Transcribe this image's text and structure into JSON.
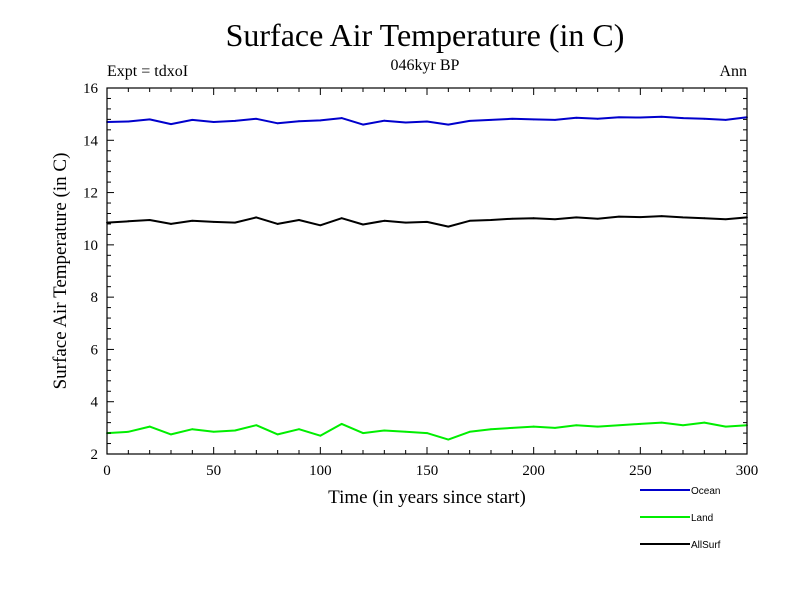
{
  "chart_data": {
    "type": "line",
    "title": "Surface Air Temperature (in C)",
    "subtitle": "046kyr BP",
    "annotations": {
      "left": "Expt = tdxoI",
      "right": "Ann"
    },
    "xlabel": "Time (in years since start)",
    "ylabel": "Surface Air Temperature (in C)",
    "xlim": [
      0,
      300
    ],
    "ylim": [
      2,
      16
    ],
    "xticks": [
      0,
      50,
      100,
      150,
      200,
      250,
      300
    ],
    "xtick_labels": [
      "0",
      "50",
      "100",
      "150",
      "200",
      "250",
      "300"
    ],
    "yticks": [
      2,
      4,
      6,
      8,
      10,
      12,
      14,
      16
    ],
    "ytick_labels": [
      "2",
      "4",
      "6",
      "8",
      "10",
      "12",
      "14",
      "16"
    ],
    "grid": false,
    "legend_position": "bottom-right, below plot",
    "x": [
      0,
      10,
      20,
      30,
      40,
      50,
      60,
      70,
      80,
      90,
      100,
      110,
      120,
      130,
      140,
      150,
      160,
      170,
      180,
      190,
      200,
      210,
      220,
      230,
      240,
      250,
      260,
      270,
      280,
      290,
      300
    ],
    "series": [
      {
        "name": "Ocean",
        "color": "#0000cc",
        "values": [
          14.7,
          14.72,
          14.8,
          14.62,
          14.78,
          14.7,
          14.74,
          14.82,
          14.65,
          14.73,
          14.76,
          14.85,
          14.6,
          14.75,
          14.68,
          14.72,
          14.6,
          14.74,
          14.78,
          14.82,
          14.8,
          14.78,
          14.86,
          14.82,
          14.88,
          14.87,
          14.9,
          14.85,
          14.82,
          14.78,
          14.88
        ]
      },
      {
        "name": "Land",
        "color": "#00ee00",
        "values": [
          2.8,
          2.85,
          3.05,
          2.75,
          2.95,
          2.85,
          2.9,
          3.1,
          2.75,
          2.95,
          2.7,
          3.15,
          2.8,
          2.9,
          2.85,
          2.8,
          2.55,
          2.85,
          2.95,
          3.0,
          3.05,
          3.0,
          3.1,
          3.05,
          3.1,
          3.15,
          3.2,
          3.1,
          3.2,
          3.05,
          3.1
        ]
      },
      {
        "name": "AllSurf",
        "color": "#000000",
        "values": [
          10.85,
          10.9,
          10.95,
          10.8,
          10.92,
          10.88,
          10.85,
          11.05,
          10.8,
          10.95,
          10.75,
          11.02,
          10.78,
          10.92,
          10.85,
          10.88,
          10.7,
          10.92,
          10.95,
          11.0,
          11.02,
          10.98,
          11.05,
          11.0,
          11.08,
          11.06,
          11.1,
          11.05,
          11.02,
          10.98,
          11.05
        ]
      }
    ]
  }
}
